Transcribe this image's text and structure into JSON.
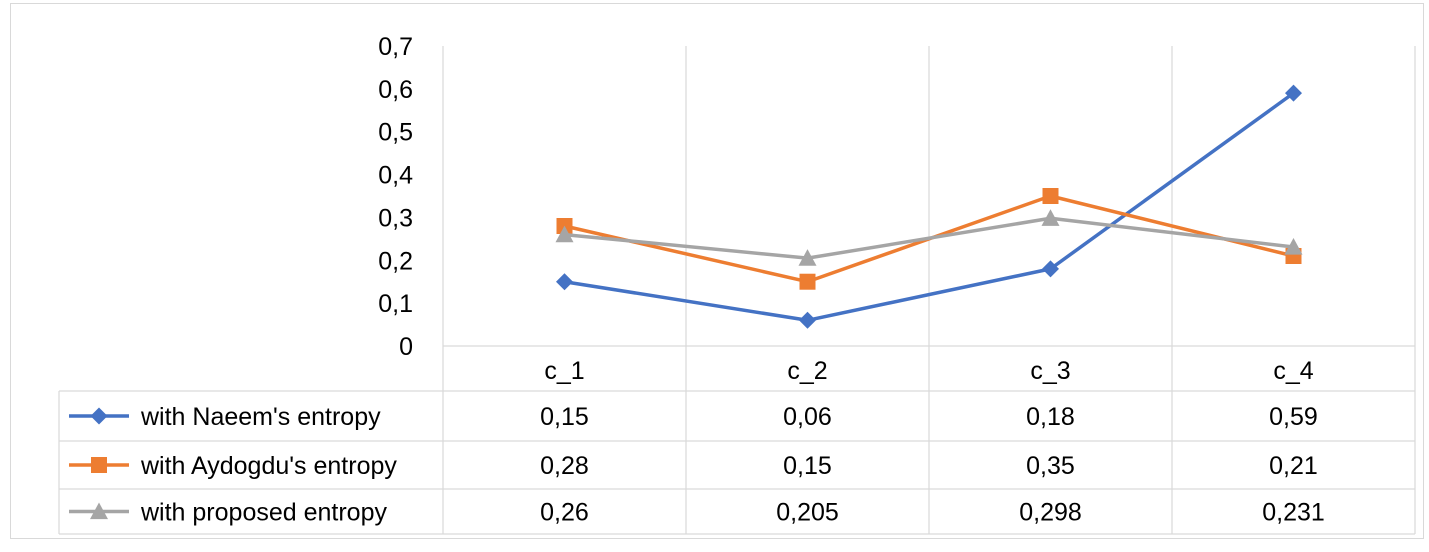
{
  "chart_data": {
    "type": "line",
    "title": "",
    "xlabel": "",
    "ylabel": "",
    "categories": [
      "c_1",
      "c_2",
      "c_3",
      "c_4"
    ],
    "ylim": [
      0,
      0.7
    ],
    "yticks": [
      0,
      0.1,
      0.2,
      0.3,
      0.4,
      0.5,
      0.6,
      0.7
    ],
    "ytick_labels": [
      "0",
      "0,1",
      "0,2",
      "0,3",
      "0,4",
      "0,5",
      "0,6",
      "0,7"
    ],
    "grid": "vertical",
    "legend": "data-table-below",
    "series": [
      {
        "name": "with Naeem's entropy",
        "marker": "diamond",
        "color": "#4472C4",
        "values": [
          0.15,
          0.06,
          0.18,
          0.59
        ],
        "labels": [
          "0,15",
          "0,06",
          "0,18",
          "0,59"
        ]
      },
      {
        "name": "with Aydogdu's entropy",
        "marker": "square",
        "color": "#ED7D31",
        "values": [
          0.28,
          0.15,
          0.35,
          0.21
        ],
        "labels": [
          "0,28",
          "0,15",
          "0,35",
          "0,21"
        ]
      },
      {
        "name": "with proposed entropy",
        "marker": "triangle",
        "color": "#A5A5A5",
        "values": [
          0.26,
          0.205,
          0.298,
          0.231
        ],
        "labels": [
          "0,26",
          "0,205",
          "0,298",
          "0,231"
        ]
      }
    ]
  }
}
